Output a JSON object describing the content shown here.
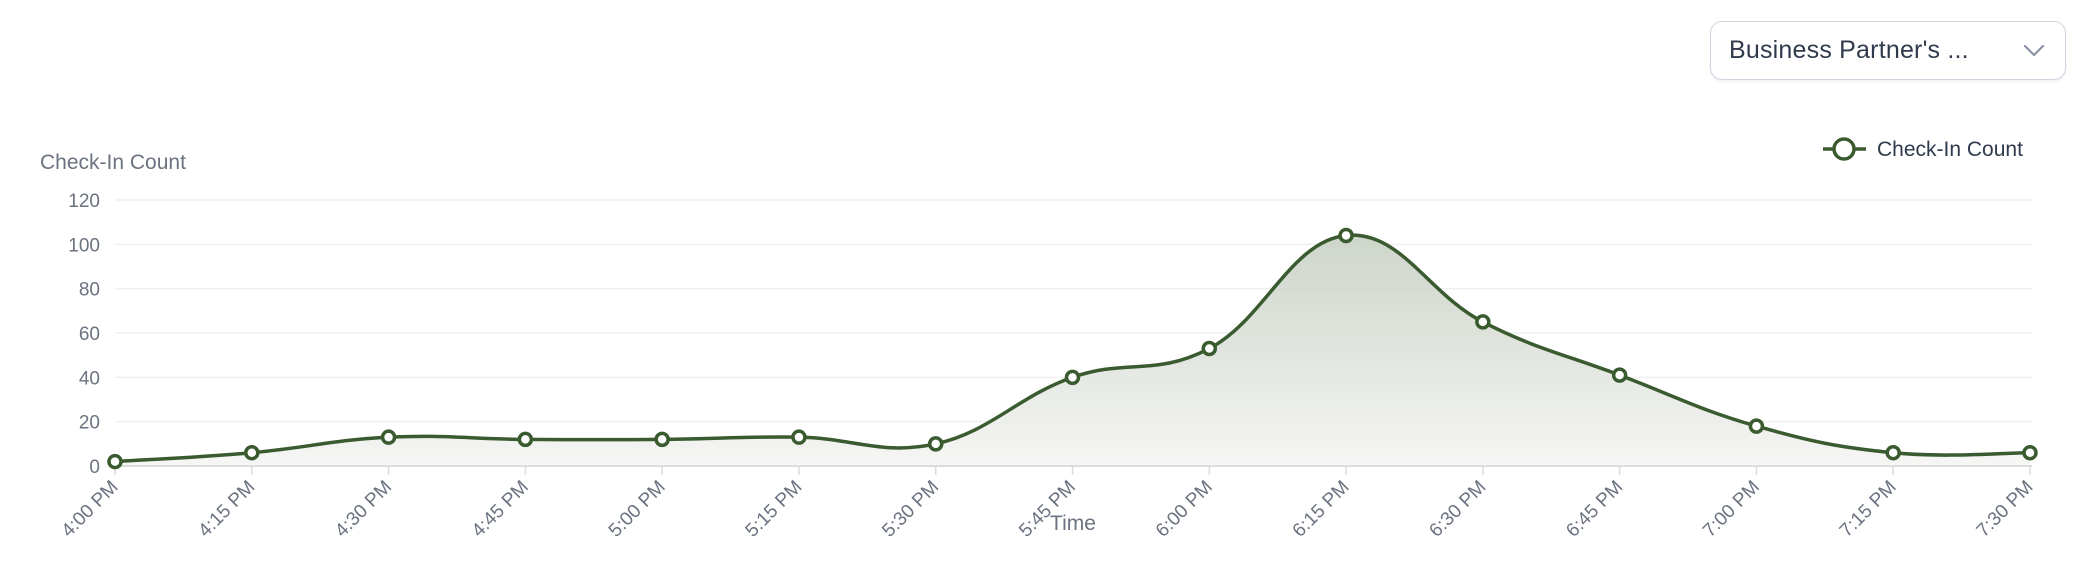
{
  "filter": {
    "selected_label": "Business Partner's ...",
    "icon": "chevron-down-icon"
  },
  "colors": {
    "line": "#3a5a2f",
    "fill_top": "#c9d1c5",
    "fill_bottom": "#f6f6f5",
    "grid": "#efefef",
    "axis": "#dcdcdc",
    "tick_text": "#6b7280",
    "legend_text": "#2f3a4d"
  },
  "chart_data": {
    "type": "area",
    "title": "",
    "xlabel": "Time",
    "ylabel": "Check-In Count",
    "ylim": [
      0,
      120
    ],
    "yticks": [
      0,
      20,
      40,
      60,
      80,
      100,
      120
    ],
    "grid": true,
    "legend_position": "top-right",
    "categories": [
      "4:00 PM",
      "4:15 PM",
      "4:30 PM",
      "4:45 PM",
      "5:00 PM",
      "5:15 PM",
      "5:30 PM",
      "5:45 PM",
      "6:00 PM",
      "6:15 PM",
      "6:30 PM",
      "6:45 PM",
      "7:00 PM",
      "7:15 PM",
      "7:30 PM"
    ],
    "series": [
      {
        "name": "Check-In Count",
        "values": [
          2,
          6,
          13,
          12,
          12,
          13,
          10,
          40,
          53,
          104,
          65,
          41,
          18,
          6,
          6
        ]
      }
    ]
  },
  "legend": {
    "label": "Check-In Count"
  },
  "axes": {
    "y_title": "Check-In Count",
    "x_title": "Time"
  }
}
